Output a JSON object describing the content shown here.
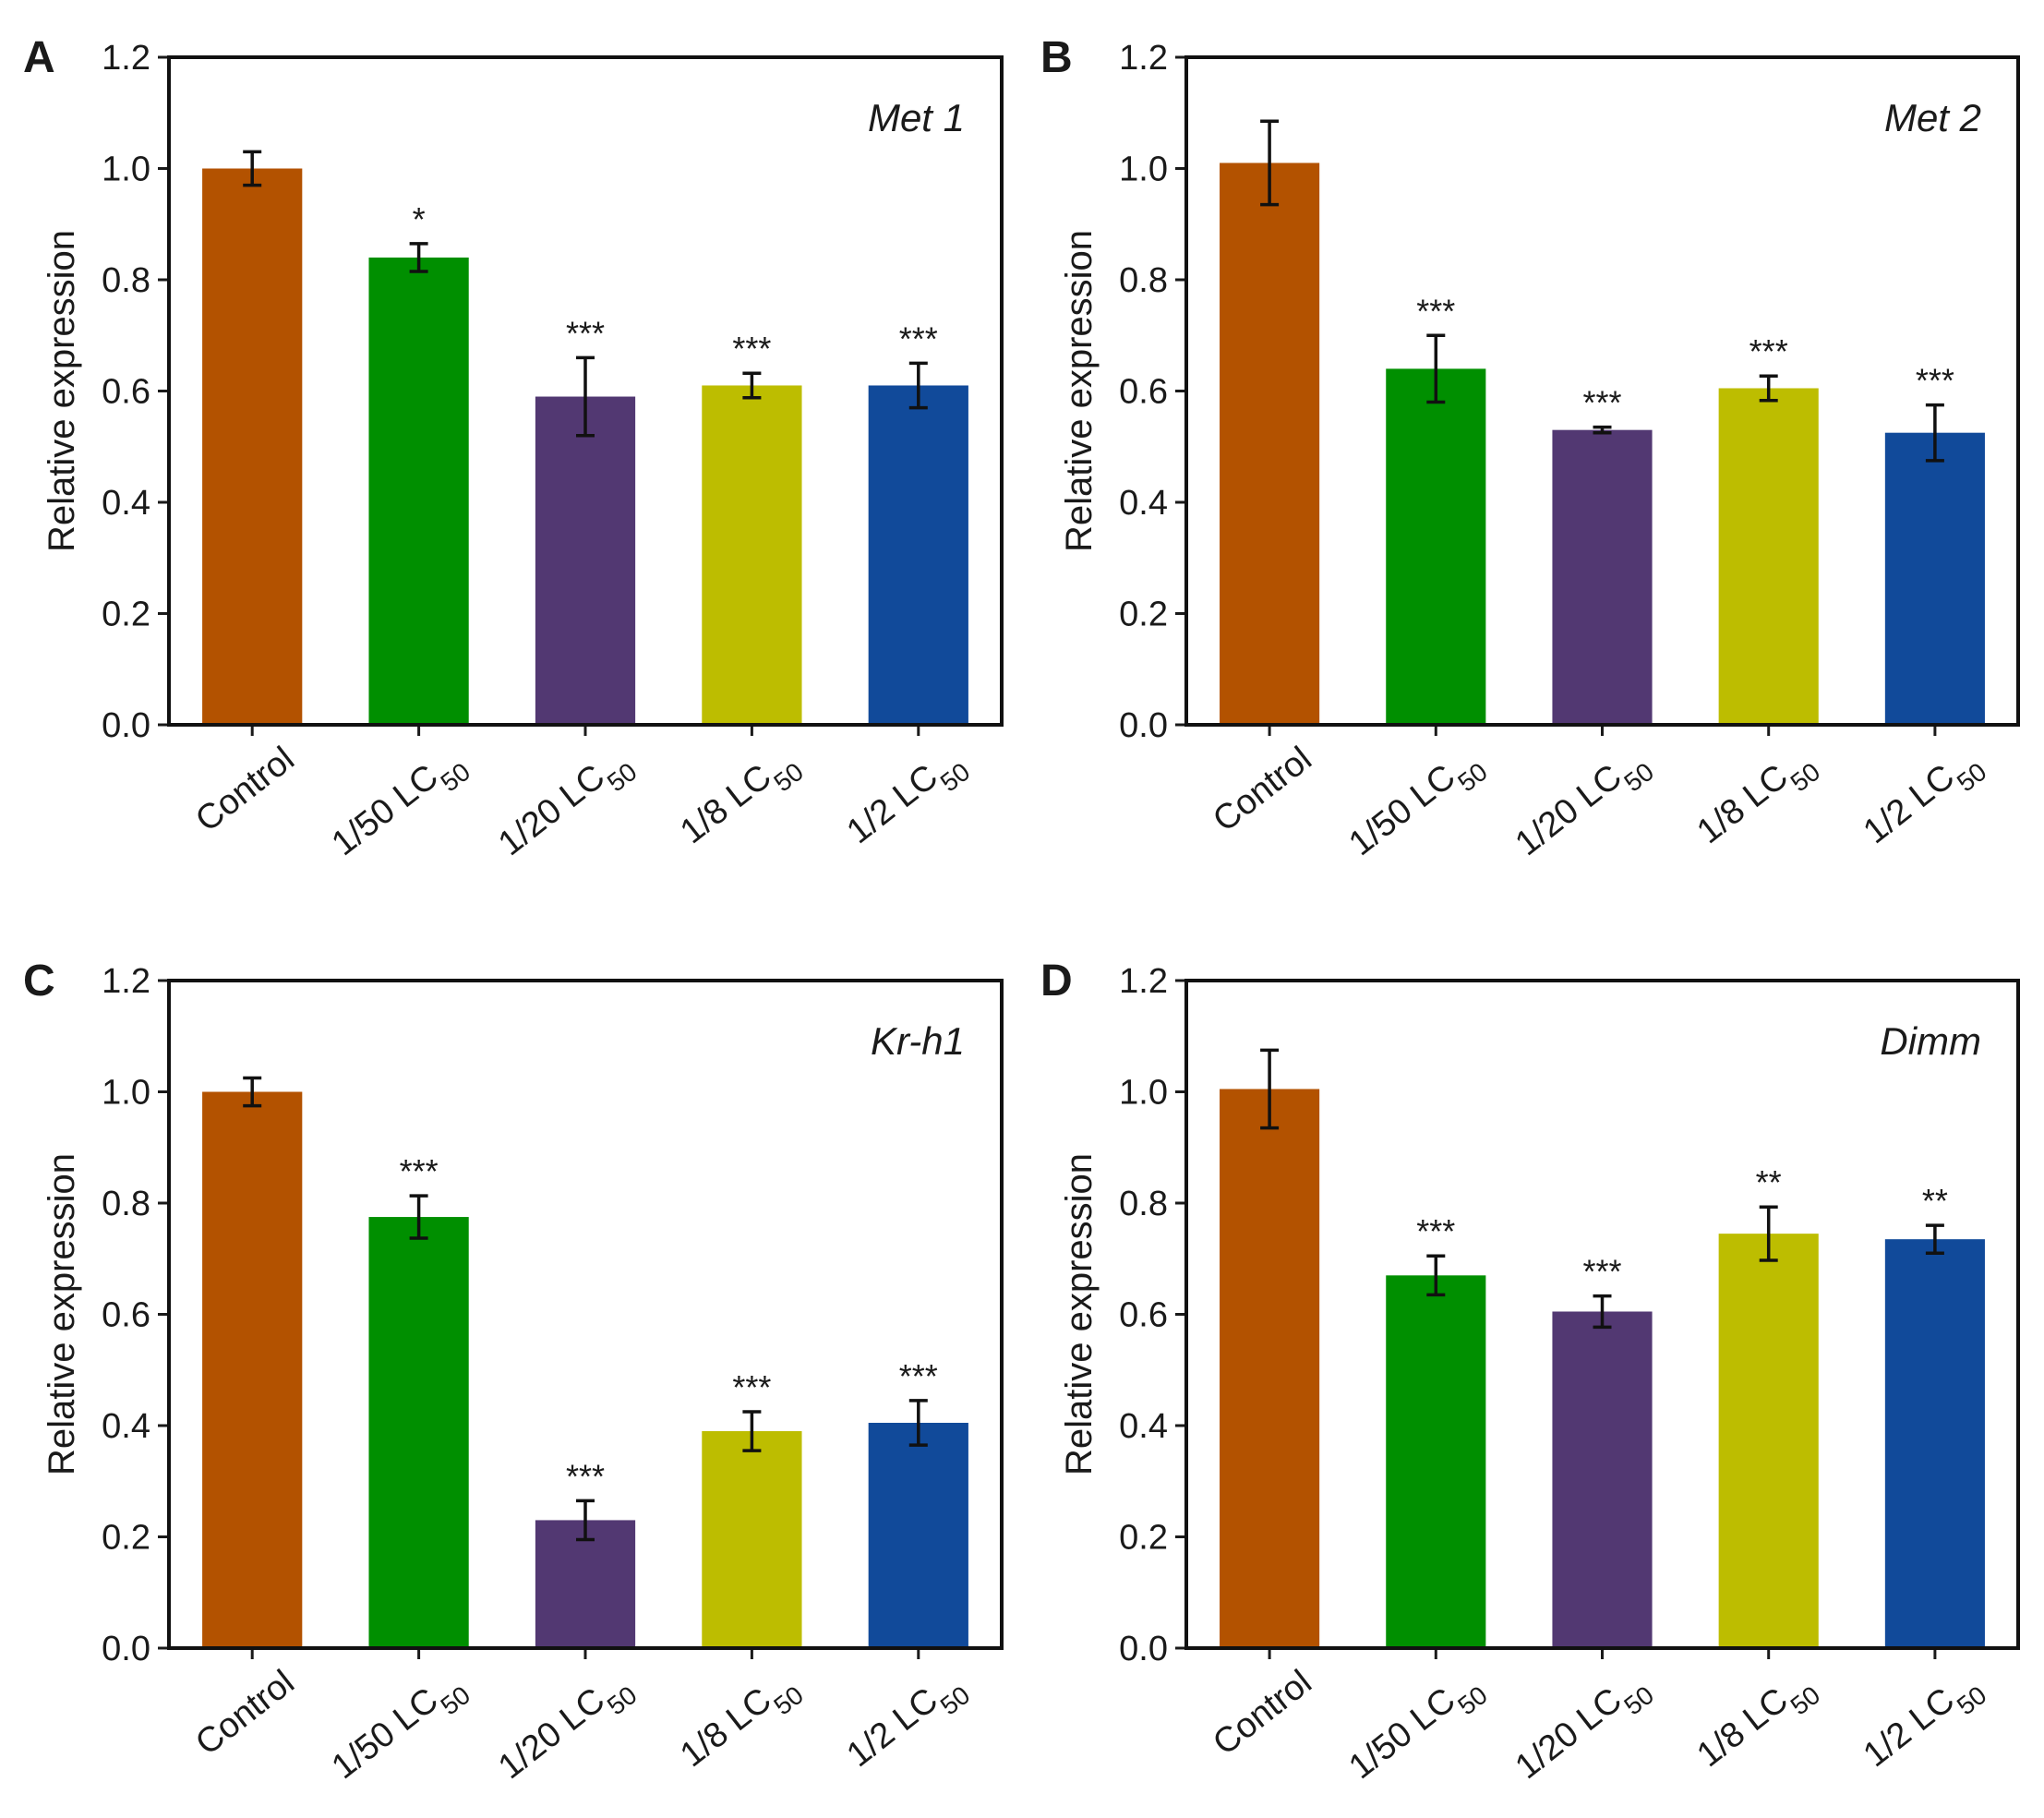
{
  "chart_data": [
    {
      "type": "bar",
      "panel": "A",
      "gene": "Met 1",
      "ylabel": "Relative expression",
      "ylim": [
        0,
        1.2
      ],
      "yticks": [
        "0.0",
        "0.2",
        "0.4",
        "0.6",
        "0.8",
        "1.0",
        "1.2"
      ],
      "categories": [
        {
          "main": "Control",
          "sub": ""
        },
        {
          "main": "1/50 LC",
          "sub": "50"
        },
        {
          "main": "1/20 LC",
          "sub": "50"
        },
        {
          "main": "1/8 LC",
          "sub": "50"
        },
        {
          "main": "1/2 LC",
          "sub": "50"
        }
      ],
      "values": [
        1.0,
        0.84,
        0.59,
        0.61,
        0.61
      ],
      "errors": [
        0.03,
        0.025,
        0.07,
        0.022,
        0.04
      ],
      "significance": [
        "",
        "*",
        "***",
        "***",
        "***"
      ],
      "colors": [
        "#B35200",
        "#008F00",
        "#523872",
        "#BDBD00",
        "#114A9A"
      ]
    },
    {
      "type": "bar",
      "panel": "B",
      "gene": "Met 2",
      "ylabel": "Relative expression",
      "ylim": [
        0,
        1.2
      ],
      "yticks": [
        "0.0",
        "0.2",
        "0.4",
        "0.6",
        "0.8",
        "1.0",
        "1.2"
      ],
      "categories": [
        {
          "main": "Control",
          "sub": ""
        },
        {
          "main": "1/50 LC",
          "sub": "50"
        },
        {
          "main": "1/20 LC",
          "sub": "50"
        },
        {
          "main": "1/8 LC",
          "sub": "50"
        },
        {
          "main": "1/2 LC",
          "sub": "50"
        }
      ],
      "values": [
        1.01,
        0.64,
        0.53,
        0.605,
        0.525
      ],
      "errors": [
        0.075,
        0.06,
        0.005,
        0.022,
        0.05
      ],
      "significance": [
        "",
        "***",
        "***",
        "***",
        "***"
      ],
      "colors": [
        "#B35200",
        "#008F00",
        "#523872",
        "#BDBD00",
        "#114A9A"
      ]
    },
    {
      "type": "bar",
      "panel": "C",
      "gene": "Kr-h1",
      "ylabel": "Relative expression",
      "ylim": [
        0,
        1.2
      ],
      "yticks": [
        "0.0",
        "0.2",
        "0.4",
        "0.6",
        "0.8",
        "1.0",
        "1.2"
      ],
      "categories": [
        {
          "main": "Control",
          "sub": ""
        },
        {
          "main": "1/50 LC",
          "sub": "50"
        },
        {
          "main": "1/20 LC",
          "sub": "50"
        },
        {
          "main": "1/8 LC",
          "sub": "50"
        },
        {
          "main": "1/2 LC",
          "sub": "50"
        }
      ],
      "values": [
        1.0,
        0.775,
        0.23,
        0.39,
        0.405
      ],
      "errors": [
        0.025,
        0.038,
        0.035,
        0.035,
        0.04
      ],
      "significance": [
        "",
        "***",
        "***",
        "***",
        "***"
      ],
      "colors": [
        "#B35200",
        "#008F00",
        "#523872",
        "#BDBD00",
        "#114A9A"
      ]
    },
    {
      "type": "bar",
      "panel": "D",
      "gene": "Dimm",
      "ylabel": "Relative expression",
      "ylim": [
        0,
        1.2
      ],
      "yticks": [
        "0.0",
        "0.2",
        "0.4",
        "0.6",
        "0.8",
        "1.0",
        "1.2"
      ],
      "categories": [
        {
          "main": "Control",
          "sub": ""
        },
        {
          "main": "1/50 LC",
          "sub": "50"
        },
        {
          "main": "1/20 LC",
          "sub": "50"
        },
        {
          "main": "1/8 LC",
          "sub": "50"
        },
        {
          "main": "1/2 LC",
          "sub": "50"
        }
      ],
      "values": [
        1.005,
        0.67,
        0.605,
        0.745,
        0.735
      ],
      "errors": [
        0.07,
        0.035,
        0.028,
        0.048,
        0.025
      ],
      "significance": [
        "",
        "***",
        "***",
        "**",
        "**"
      ],
      "colors": [
        "#B35200",
        "#008F00",
        "#523872",
        "#BDBD00",
        "#114A9A"
      ]
    }
  ]
}
